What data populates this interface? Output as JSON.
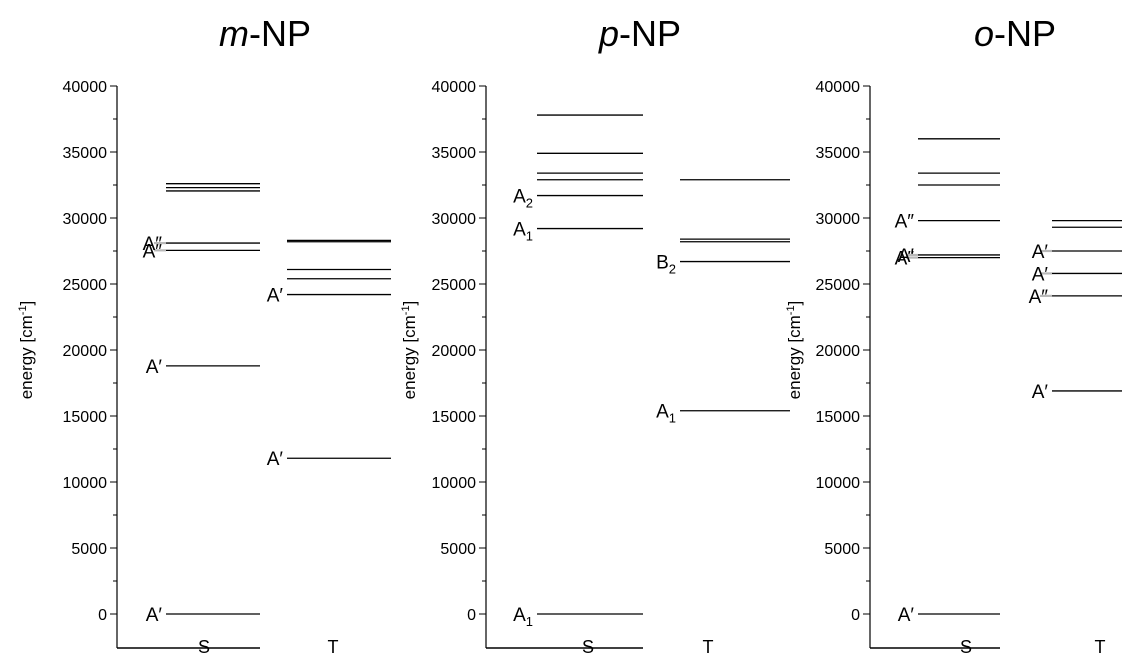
{
  "chart_data": [
    {
      "type": "energy-level diagram",
      "title": {
        "prefix": "m",
        "suffix": "-NP"
      },
      "ylabel": "energy [cm",
      "ylabel_sup": "-1",
      "ylabel_end": "]",
      "ylim": [
        0,
        40000
      ],
      "yticks": [
        "0",
        "5000",
        "10000",
        "15000",
        "20000",
        "25000",
        "30000",
        "35000",
        "40000"
      ],
      "categories": [
        "S",
        "T"
      ],
      "series": [
        {
          "category": "S",
          "levels": [
            {
              "value": 0,
              "color": "#000000"
            },
            {
              "value": 18800,
              "color": "#000000"
            },
            {
              "value": 27550,
              "color": "#000000"
            },
            {
              "value": 28100,
              "color": "#000000"
            },
            {
              "value": 32050,
              "color": "#000000"
            },
            {
              "value": 32300,
              "color": "#000000"
            },
            {
              "value": 32600,
              "color": "#000000"
            }
          ],
          "annotations": [
            {
              "text": "A′",
              "sub": "",
              "value": 0
            },
            {
              "text": "A′",
              "sub": "",
              "value": 18800
            },
            {
              "text": "A″",
              "sub": "",
              "value": 27550,
              "connector": true
            },
            {
              "text": "A″",
              "sub": "",
              "value": 28100,
              "connector": true
            }
          ]
        },
        {
          "category": "T",
          "levels": [
            {
              "value": 11800,
              "color": "#000000"
            },
            {
              "value": 24200,
              "color": "#000000"
            },
            {
              "value": 25400,
              "color": "#000000"
            },
            {
              "value": 26100,
              "color": "#000000"
            },
            {
              "value": 28200,
              "color": "#000000"
            },
            {
              "value": 28300,
              "color": "#000000"
            }
          ],
          "annotations": [
            {
              "text": "A′",
              "sub": "",
              "value": 11800
            },
            {
              "text": "A′",
              "sub": "",
              "value": 24200
            }
          ]
        }
      ]
    },
    {
      "type": "energy-level diagram",
      "title": {
        "prefix": "p",
        "suffix": "-NP"
      },
      "ylabel": "energy [cm",
      "ylabel_sup": "-1",
      "ylabel_end": "]",
      "ylim": [
        0,
        40000
      ],
      "yticks": [
        "0",
        "5000",
        "10000",
        "15000",
        "20000",
        "25000",
        "30000",
        "35000",
        "40000"
      ],
      "categories": [
        "S",
        "T"
      ],
      "series": [
        {
          "category": "S",
          "levels": [
            {
              "value": 0,
              "color": "#000000"
            },
            {
              "value": 29200,
              "color": "#000000"
            },
            {
              "value": 31700,
              "color": "#000000"
            },
            {
              "value": 32900,
              "color": "#000000"
            },
            {
              "value": 33400,
              "color": "#000000"
            },
            {
              "value": 34900,
              "color": "#000000"
            },
            {
              "value": 37800,
              "color": "#000000"
            }
          ],
          "annotations": [
            {
              "text": "A",
              "sub": "1",
              "value": 0
            },
            {
              "text": "A",
              "sub": "1",
              "value": 29200
            },
            {
              "text": "A",
              "sub": "2",
              "value": 31700
            }
          ]
        },
        {
          "category": "T",
          "levels": [
            {
              "value": 15400,
              "color": "#000000"
            },
            {
              "value": 26700,
              "color": "#000000"
            },
            {
              "value": 28200,
              "color": "#000000"
            },
            {
              "value": 28400,
              "color": "#000000"
            },
            {
              "value": 32900,
              "color": "#000000"
            }
          ],
          "annotations": [
            {
              "text": "A",
              "sub": "1",
              "value": 15400
            },
            {
              "text": "B",
              "sub": "2",
              "value": 26700
            }
          ]
        }
      ]
    },
    {
      "type": "energy-level diagram",
      "title": {
        "prefix": "o",
        "suffix": "-NP"
      },
      "ylabel": "energy [cm",
      "ylabel_sup": "-1",
      "ylabel_end": "]",
      "ylim": [
        0,
        40000
      ],
      "yticks": [
        "0",
        "5000",
        "10000",
        "15000",
        "20000",
        "25000",
        "30000",
        "35000",
        "40000"
      ],
      "categories": [
        "S",
        "T"
      ],
      "series": [
        {
          "category": "S",
          "levels": [
            {
              "value": 0,
              "color": "#000000"
            },
            {
              "value": 27000,
              "color": "#000000"
            },
            {
              "value": 27200,
              "color": "#000000"
            },
            {
              "value": 29800,
              "color": "#000000"
            },
            {
              "value": 32500,
              "color": "#000000"
            },
            {
              "value": 33400,
              "color": "#000000"
            },
            {
              "value": 36000,
              "color": "#000000"
            }
          ],
          "annotations": [
            {
              "text": "A′",
              "sub": "",
              "value": 0
            },
            {
              "text": "A″",
              "sub": "",
              "value": 27000,
              "connector": true
            },
            {
              "text": "A′",
              "sub": "",
              "value": 27200,
              "connector": true
            },
            {
              "text": "A″",
              "sub": "",
              "value": 29800
            }
          ]
        },
        {
          "category": "T",
          "levels": [
            {
              "value": 16900,
              "color": "#000000"
            },
            {
              "value": 24100,
              "color": "#000000"
            },
            {
              "value": 25800,
              "color": "#000000"
            },
            {
              "value": 27500,
              "color": "#000000"
            },
            {
              "value": 29300,
              "color": "#000000"
            },
            {
              "value": 29800,
              "color": "#000000"
            }
          ],
          "annotations": [
            {
              "text": "A′",
              "sub": "",
              "value": 16900
            },
            {
              "text": "A″",
              "sub": "",
              "value": 24100,
              "connector": true
            },
            {
              "text": "A′",
              "sub": "",
              "value": 25800,
              "connector": true
            },
            {
              "text": "A′",
              "sub": "",
              "value": 27500,
              "connector": true
            }
          ]
        }
      ]
    }
  ],
  "connector_color": "#b8b8b8"
}
